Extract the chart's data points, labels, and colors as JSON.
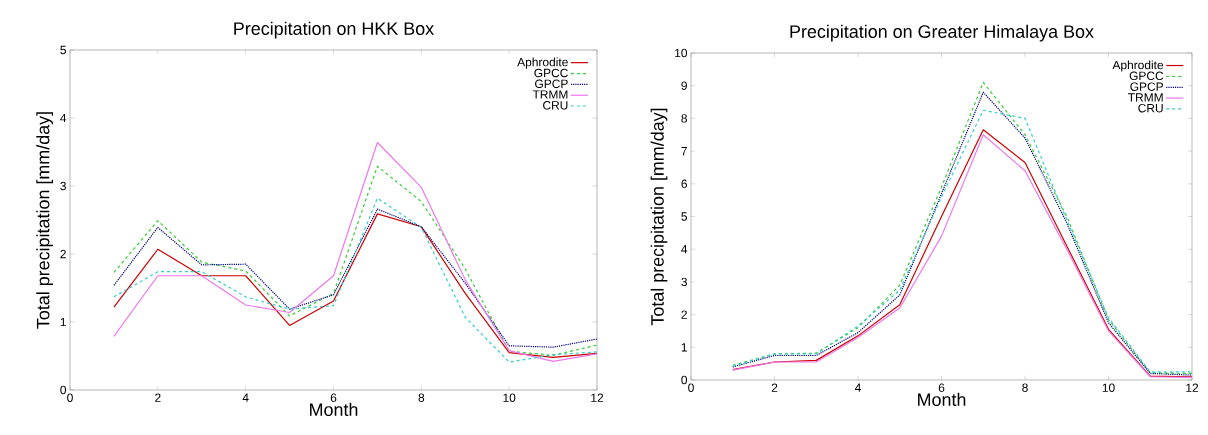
{
  "chart_data": [
    {
      "type": "line",
      "title": "Precipitation on HKK Box",
      "xlabel": "Month",
      "ylabel": "Total precipitation [mm/day]",
      "x": [
        1,
        2,
        3,
        4,
        5,
        6,
        7,
        8,
        9,
        10,
        11,
        12
      ],
      "xlim": [
        0,
        12
      ],
      "xticks": [
        0,
        2,
        4,
        6,
        8,
        10,
        12
      ],
      "ylim": [
        0,
        5
      ],
      "yticks": [
        0,
        1,
        2,
        3,
        4,
        5
      ],
      "legend": "top right",
      "series": [
        {
          "name": "Aphrodite",
          "color": "#cc0000",
          "line_style": "solid",
          "values": [
            1.22,
            2.07,
            1.68,
            1.68,
            0.95,
            1.31,
            2.59,
            2.4,
            1.42,
            0.55,
            0.48,
            0.54
          ]
        },
        {
          "name": "GPCC",
          "color": "#33cc33",
          "line_style": "dashed",
          "values": [
            1.73,
            2.49,
            1.88,
            1.75,
            1.09,
            1.42,
            3.29,
            2.77,
            1.78,
            0.57,
            0.51,
            0.66
          ]
        },
        {
          "name": "GPCP",
          "color": "#000080",
          "line_style": "dotted",
          "values": [
            1.54,
            2.39,
            1.84,
            1.85,
            1.19,
            1.4,
            2.66,
            2.4,
            1.57,
            0.65,
            0.63,
            0.75
          ]
        },
        {
          "name": "TRMM",
          "color": "#ee77ee",
          "line_style": "solid",
          "values": [
            0.79,
            1.68,
            1.68,
            1.25,
            1.14,
            1.68,
            3.64,
            2.98,
            1.62,
            0.58,
            0.42,
            0.53
          ]
        },
        {
          "name": "CRU",
          "color": "#33cccc",
          "line_style": "dashed",
          "values": [
            1.37,
            1.74,
            1.74,
            1.37,
            1.19,
            1.24,
            2.82,
            2.39,
            1.07,
            0.41,
            0.52,
            0.56
          ]
        }
      ]
    },
    {
      "type": "line",
      "title": "Precipitation on Greater Himalaya Box",
      "xlabel": "Month",
      "ylabel": "Total precipitation [mm/day]",
      "x": [
        1,
        2,
        3,
        4,
        5,
        6,
        7,
        8,
        9,
        10,
        11,
        12
      ],
      "xlim": [
        0,
        12
      ],
      "xticks": [
        0,
        2,
        4,
        6,
        8,
        10,
        12
      ],
      "ylim": [
        0,
        10
      ],
      "yticks": [
        0,
        1,
        2,
        3,
        4,
        5,
        6,
        7,
        8,
        9,
        10
      ],
      "legend": "top right",
      "series": [
        {
          "name": "Aphrodite",
          "color": "#cc0000",
          "line_style": "solid",
          "values": [
            0.32,
            0.55,
            0.6,
            1.35,
            2.3,
            5.0,
            7.65,
            6.65,
            4.1,
            1.55,
            0.12,
            0.1
          ]
        },
        {
          "name": "GPCC",
          "color": "#33cc33",
          "line_style": "dashed",
          "values": [
            0.45,
            0.8,
            0.82,
            1.6,
            2.9,
            5.9,
            9.1,
            7.5,
            5.0,
            1.85,
            0.22,
            0.2
          ]
        },
        {
          "name": "GPCP",
          "color": "#000080",
          "line_style": "dotted",
          "values": [
            0.4,
            0.75,
            0.75,
            1.45,
            2.6,
            5.7,
            8.8,
            7.4,
            4.8,
            1.75,
            0.2,
            0.15
          ]
        },
        {
          "name": "TRMM",
          "color": "#ee77ee",
          "line_style": "solid",
          "values": [
            0.3,
            0.55,
            0.55,
            1.3,
            2.2,
            4.4,
            7.5,
            6.4,
            4.0,
            1.5,
            0.1,
            0.08
          ]
        },
        {
          "name": "CRU",
          "color": "#33cccc",
          "line_style": "dashed",
          "values": [
            0.42,
            0.8,
            0.8,
            1.65,
            2.75,
            5.6,
            8.25,
            8.0,
            4.9,
            1.9,
            0.25,
            0.25
          ]
        }
      ]
    }
  ]
}
